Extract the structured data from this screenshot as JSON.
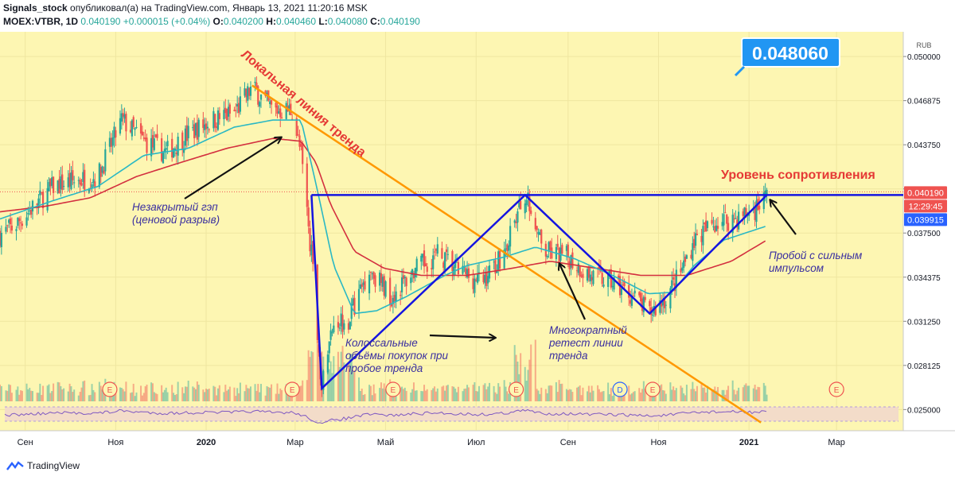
{
  "header": {
    "author": "Signals_stock",
    "published_text": "опубликовал(а) на TradingView.com, Январь 13, 2021 11:20:16 MSK",
    "symbol": "MOEX:VTBR, 1D",
    "last": "0.040190",
    "change": "+0.000015 (+0.04%)",
    "o_label": "O:",
    "o": "0.040200",
    "h_label": "H:",
    "h": "0.040460",
    "l_label": "L:",
    "l": "0.040080",
    "c_label": "C:",
    "c": "0.040190"
  },
  "footer": {
    "brand": "TradingView"
  },
  "colors": {
    "plot_bg": "#fdf6b2",
    "candle_up": "#26a69a",
    "candle_down": "#ef5350",
    "ma_fast": "#2ab8c4",
    "ma_slow": "#d32f3f",
    "pattern": "#1515e0",
    "trendline": "#ff9800",
    "annotation_text": "#3a2fa0",
    "price_tag": "#2962ff"
  },
  "chart_data": {
    "type": "candlestick",
    "currency": "RUB",
    "y_ticks": [
      "0.050000",
      "0.046875",
      "0.043750",
      "0.040625",
      "0.037500",
      "0.034375",
      "0.031250",
      "0.028125",
      "0.025000"
    ],
    "y_tick_values": [
      0.05,
      0.046875,
      0.04375,
      0.040625,
      0.0375,
      0.034375,
      0.03125,
      0.028125,
      0.025
    ],
    "ylim": [
      0.0235,
      0.05175
    ],
    "x_ticks": [
      "Сен",
      "Ноя",
      "2020",
      "Мар",
      "Май",
      "Июл",
      "Сен",
      "Ноя",
      "2021",
      "Мар"
    ],
    "x_range": [
      "2019-08-15",
      "2021-04-15"
    ],
    "x_tick_dates": [
      "2019-09-01",
      "2019-11-01",
      "2020-01-01",
      "2020-03-01",
      "2020-05-01",
      "2020-07-01",
      "2020-09-01",
      "2020-11-01",
      "2021-01-01",
      "2021-03-01"
    ],
    "price_path": [
      [
        "2019-08-15",
        0.0374
      ],
      [
        "2019-08-25",
        0.038
      ],
      [
        "2019-09-05",
        0.0392
      ],
      [
        "2019-09-20",
        0.0408
      ],
      [
        "2019-10-05",
        0.0412
      ],
      [
        "2019-10-20",
        0.0415
      ],
      [
        "2019-11-05",
        0.0455
      ],
      [
        "2019-11-20",
        0.044
      ],
      [
        "2019-12-05",
        0.0432
      ],
      [
        "2019-12-20",
        0.0445
      ],
      [
        "2020-01-05",
        0.0455
      ],
      [
        "2020-01-20",
        0.046
      ],
      [
        "2020-02-01",
        0.0478
      ],
      [
        "2020-02-15",
        0.0462
      ],
      [
        "2020-02-28",
        0.0462
      ],
      [
        "2020-03-05",
        0.043
      ],
      [
        "2020-03-12",
        0.036
      ],
      [
        "2020-03-19",
        0.0265
      ],
      [
        "2020-03-27",
        0.0315
      ],
      [
        "2020-04-05",
        0.0312
      ],
      [
        "2020-04-20",
        0.035
      ],
      [
        "2020-05-05",
        0.033
      ],
      [
        "2020-05-20",
        0.0348
      ],
      [
        "2020-06-05",
        0.036
      ],
      [
        "2020-06-20",
        0.0348
      ],
      [
        "2020-07-05",
        0.034
      ],
      [
        "2020-07-20",
        0.0362
      ],
      [
        "2020-08-03",
        0.0403
      ],
      [
        "2020-08-15",
        0.0362
      ],
      [
        "2020-09-01",
        0.0358
      ],
      [
        "2020-09-15",
        0.0345
      ],
      [
        "2020-10-01",
        0.034
      ],
      [
        "2020-10-15",
        0.033
      ],
      [
        "2020-10-26",
        0.0318
      ],
      [
        "2020-11-05",
        0.0328
      ],
      [
        "2020-11-15",
        0.0345
      ],
      [
        "2020-11-25",
        0.037
      ],
      [
        "2020-12-10",
        0.0383
      ],
      [
        "2020-12-25",
        0.0386
      ],
      [
        "2021-01-05",
        0.0392
      ],
      [
        "2021-01-13",
        0.0402
      ]
    ],
    "ma_fast_path": [
      [
        "2019-08-15",
        0.0385
      ],
      [
        "2019-09-20",
        0.0398
      ],
      [
        "2019-10-20",
        0.0408
      ],
      [
        "2019-11-20",
        0.043
      ],
      [
        "2019-12-20",
        0.0435
      ],
      [
        "2020-01-20",
        0.045
      ],
      [
        "2020-02-15",
        0.0455
      ],
      [
        "2020-03-05",
        0.0455
      ],
      [
        "2020-03-15",
        0.041
      ],
      [
        "2020-03-27",
        0.0352
      ],
      [
        "2020-04-10",
        0.0318
      ],
      [
        "2020-04-25",
        0.032
      ],
      [
        "2020-05-15",
        0.033
      ],
      [
        "2020-06-10",
        0.0345
      ],
      [
        "2020-06-25",
        0.0352
      ],
      [
        "2020-07-20",
        0.0358
      ],
      [
        "2020-08-10",
        0.0365
      ],
      [
        "2020-09-05",
        0.0357
      ],
      [
        "2020-10-01",
        0.0345
      ],
      [
        "2020-10-25",
        0.0332
      ],
      [
        "2020-11-10",
        0.0333
      ],
      [
        "2020-11-25",
        0.0352
      ],
      [
        "2020-12-15",
        0.037
      ],
      [
        "2021-01-13",
        0.038
      ]
    ],
    "ma_slow_path": [
      [
        "2019-08-15",
        0.039
      ],
      [
        "2019-09-15",
        0.0394
      ],
      [
        "2019-10-15",
        0.04
      ],
      [
        "2019-11-15",
        0.0415
      ],
      [
        "2019-12-15",
        0.0425
      ],
      [
        "2020-01-15",
        0.0435
      ],
      [
        "2020-02-15",
        0.0442
      ],
      [
        "2020-03-05",
        0.044
      ],
      [
        "2020-03-15",
        0.0425
      ],
      [
        "2020-03-25",
        0.0395
      ],
      [
        "2020-04-10",
        0.0362
      ],
      [
        "2020-04-30",
        0.035
      ],
      [
        "2020-05-25",
        0.0345
      ],
      [
        "2020-06-25",
        0.0345
      ],
      [
        "2020-07-25",
        0.035
      ],
      [
        "2020-08-20",
        0.0355
      ],
      [
        "2020-09-20",
        0.035
      ],
      [
        "2020-10-20",
        0.0345
      ],
      [
        "2020-11-20",
        0.0345
      ],
      [
        "2020-12-20",
        0.0355
      ],
      [
        "2021-01-13",
        0.037
      ]
    ],
    "overlays": {
      "resistance_level": 0.04019,
      "resistance_from": "2020-03-12",
      "trendline": [
        [
          "2020-02-01",
          0.04795
        ],
        [
          "2020-10-26",
          0.0293
        ]
      ],
      "pattern": [
        [
          "2020-03-12",
          0.04019
        ],
        [
          "2020-03-19",
          0.0265
        ],
        [
          "2020-08-03",
          0.04019
        ],
        [
          "2020-10-26",
          0.0318
        ],
        [
          "2021-01-13",
          0.04019
        ]
      ]
    },
    "price_tags": [
      {
        "value": 0.04019,
        "text": "0.040190",
        "color": "#ef5350"
      },
      {
        "value": 0.0394,
        "text": "12:29:45",
        "color": "#ef5350"
      },
      {
        "value": 0.039915,
        "text": "0.039915",
        "color": "#2962ff"
      }
    ],
    "big_label": "0.048060",
    "event_markers": [
      {
        "date": "2019-10-28",
        "letter": "E"
      },
      {
        "date": "2020-02-28",
        "letter": "E"
      },
      {
        "date": "2020-05-06",
        "letter": "E"
      },
      {
        "date": "2020-07-28",
        "letter": "E"
      },
      {
        "date": "2020-10-06",
        "letter": "D"
      },
      {
        "date": "2020-10-28",
        "letter": "E"
      },
      {
        "date": "2021-03-01",
        "letter": "E"
      }
    ],
    "annotations": {
      "trendline_label": "Локальная линия тренда",
      "resistance_label": "Уровень сопротивления",
      "gap_label_1": "Незакрытый гэп",
      "gap_label_2": "(ценовой разрыв)",
      "volume_label_1": "Колоссальные",
      "volume_label_2": "объёмы покупок при",
      "volume_label_3": "пробое тренда",
      "retest_label_1": "Многократный",
      "retest_label_2": "ретест линии",
      "retest_label_3": "тренда",
      "breakout_label_1": "Пробой с сильным",
      "breakout_label_2": "импульсом"
    }
  }
}
